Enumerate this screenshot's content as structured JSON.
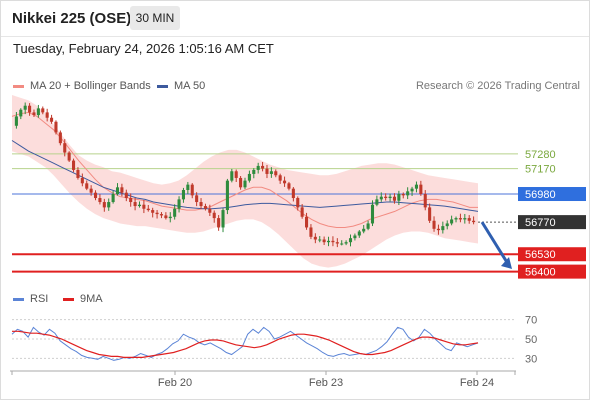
{
  "header": {
    "title": "Nikkei 225 (OSE)",
    "interval": "30 MIN"
  },
  "timestamp": "Tuesday, February 24, 2026 1:05:16 AM CET",
  "legend": {
    "bb_label": "MA 20 + Bollinger Bands",
    "ma50_label": "MA 50",
    "rsi_label": "RSI",
    "rsi_ma_label": "9MA"
  },
  "copyright": "Research © 2026 Trading Central",
  "colors": {
    "bb": "#f28b82",
    "ma50": "#3d5a9e",
    "band_fill": "#fbd7d6",
    "up": "#2e8b3d",
    "down": "#c0392b",
    "green_level": "#b7d28c",
    "blue_level": "#4b73d9",
    "red_level": "#e02020",
    "price": "#333333",
    "rsi": "#5b84d6",
    "rsi_ma": "#e02020"
  },
  "chart_data": [
    {
      "type": "line",
      "title": "Nikkei 225 (OSE) 30 MIN",
      "ylim": [
        56300,
        57720
      ],
      "x_ticks": [
        "Feb 20",
        "Feb 23",
        "Feb 24"
      ],
      "horizontal_levels": [
        {
          "value": 57280,
          "label": "57280",
          "style": "green"
        },
        {
          "value": 57170,
          "label": "57170",
          "style": "green"
        },
        {
          "value": 56980,
          "label": "56980",
          "style": "blue-tag"
        },
        {
          "value": 56770,
          "label": "56770",
          "style": "price-tag"
        },
        {
          "value": 56530,
          "label": "56530",
          "style": "red-tag"
        },
        {
          "value": 56400,
          "label": "56400",
          "style": "red-tag"
        }
      ],
      "price_path": [
        57490,
        57560,
        57610,
        57640,
        57590,
        57570,
        57620,
        57590,
        57550,
        57520,
        57440,
        57360,
        57290,
        57230,
        57160,
        57100,
        57060,
        57020,
        56990,
        56950,
        56920,
        56880,
        56920,
        56980,
        57030,
        56990,
        56950,
        56920,
        56890,
        56900,
        56870,
        56860,
        56840,
        56830,
        56820,
        56800,
        56810,
        56870,
        56940,
        57010,
        57050,
        56970,
        56920,
        56890,
        56870,
        56840,
        56800,
        56730,
        56860,
        57080,
        57150,
        57100,
        57030,
        57080,
        57130,
        57160,
        57190,
        57170,
        57130,
        57150,
        57120,
        57080,
        57060,
        57020,
        56950,
        56880,
        56810,
        56730,
        56660,
        56640,
        56640,
        56620,
        56630,
        56620,
        56610,
        56610,
        56620,
        56650,
        56670,
        56700,
        56720,
        56760,
        56900,
        56940,
        56960,
        56950,
        56960,
        56930,
        56980,
        56970,
        57000,
        57020,
        57050,
        56980,
        56880,
        56780,
        56720,
        56710,
        56740,
        56760,
        56790,
        56800,
        56790,
        56800,
        56780,
        56770
      ],
      "ma20": [
        57560,
        57580,
        57590,
        57560,
        57510,
        57460,
        57390,
        57310,
        57230,
        57160,
        57090,
        57030,
        56990,
        56960,
        56950,
        56940,
        56930,
        56910,
        56890,
        56880,
        56870,
        56860,
        56860,
        56870,
        56890,
        56920,
        56950,
        56980,
        57010,
        57030,
        57030,
        57010,
        56970,
        56930,
        56880,
        56830,
        56790,
        56760,
        56740,
        56730,
        56730,
        56740,
        56760,
        56790,
        56810,
        56830,
        56850,
        56880,
        56910,
        56930,
        56940,
        56940,
        56930,
        56920,
        56900,
        56880,
        56880
      ],
      "ma50": [
        57380,
        57340,
        57300,
        57270,
        57240,
        57210,
        57180,
        57150,
        57120,
        57090,
        57060,
        57030,
        57010,
        56990,
        56970,
        56950,
        56940,
        56920,
        56910,
        56900,
        56890,
        56880,
        56875,
        56870,
        56870,
        56875,
        56880,
        56890,
        56900,
        56905,
        56910,
        56910,
        56905,
        56900,
        56895,
        56890,
        56885,
        56880,
        56885,
        56890,
        56895,
        56900,
        56905,
        56910,
        56915,
        56920,
        56920,
        56915,
        56910,
        56905,
        56900,
        56895,
        56890,
        56880,
        56870,
        56860,
        56850
      ],
      "bollinger_upper": [
        57720,
        57700,
        57680,
        57640,
        57580,
        57500,
        57420,
        57340,
        57270,
        57230,
        57200,
        57180,
        57150,
        57140,
        57120,
        57100,
        57080,
        57060,
        57050,
        57060,
        57080,
        57120,
        57170,
        57220,
        57260,
        57290,
        57310,
        57310,
        57290,
        57260,
        57230,
        57200,
        57180,
        57160,
        57150,
        57140,
        57130,
        57120,
        57120,
        57130,
        57150,
        57170,
        57190,
        57200,
        57210,
        57210,
        57200,
        57180,
        57160,
        57140,
        57120,
        57110,
        57100,
        57090,
        57080,
        57070,
        57060
      ],
      "bollinger_lower": [
        57300,
        57280,
        57260,
        57220,
        57180,
        57120,
        57050,
        56980,
        56920,
        56870,
        56830,
        56800,
        56780,
        56760,
        56750,
        56740,
        56740,
        56730,
        56720,
        56710,
        56700,
        56690,
        56690,
        56700,
        56720,
        56740,
        56760,
        56780,
        56790,
        56790,
        56770,
        56730,
        56680,
        56620,
        56560,
        56500,
        56460,
        56440,
        56430,
        56440,
        56460,
        56490,
        56520,
        56560,
        56600,
        56640,
        56670,
        56690,
        56700,
        56700,
        56690,
        56670,
        56650,
        56640,
        56630,
        56620,
        56610
      ]
    },
    {
      "type": "line",
      "title": "RSI",
      "ylim": [
        20,
        80
      ],
      "y_ticks": [
        70,
        50,
        30
      ],
      "x_ticks": [
        "Feb 20",
        "Feb 23",
        "Feb 24"
      ],
      "series": [
        {
          "name": "RSI",
          "values": [
            55,
            60,
            58,
            52,
            62,
            57,
            54,
            60,
            56,
            48,
            44,
            40,
            37,
            33,
            31,
            30,
            29,
            32,
            30,
            28,
            29,
            31,
            30,
            32,
            35,
            33,
            31,
            34,
            36,
            40,
            45,
            48,
            55,
            52,
            50,
            46,
            44,
            46,
            43,
            40,
            36,
            34,
            38,
            42,
            55,
            60,
            56,
            62,
            58,
            50,
            52,
            55,
            58,
            54,
            50,
            46,
            43,
            40,
            36,
            33,
            32,
            34,
            35,
            33,
            34,
            35,
            34,
            36,
            38,
            42,
            47,
            55,
            62,
            60,
            52,
            48,
            52,
            60,
            56,
            50,
            45,
            40,
            38,
            46,
            44,
            42,
            44,
            46
          ]
        },
        {
          "name": "9MA",
          "values": [
            58,
            58,
            57,
            56,
            56,
            55,
            54,
            52,
            50,
            47,
            44,
            41,
            38,
            36,
            34,
            33,
            32,
            32,
            31,
            31,
            31,
            31,
            32,
            33,
            34,
            35,
            36,
            38,
            40,
            43,
            46,
            48,
            49,
            49,
            48,
            46,
            44,
            43,
            42,
            41,
            42,
            44,
            47,
            50,
            52,
            54,
            55,
            55,
            54,
            53,
            51,
            49,
            46,
            43,
            40,
            37,
            35,
            34,
            34,
            35,
            36,
            38,
            41,
            44,
            47,
            50,
            52,
            52,
            51,
            49,
            47,
            45,
            44,
            44,
            45,
            46
          ]
        }
      ]
    }
  ]
}
